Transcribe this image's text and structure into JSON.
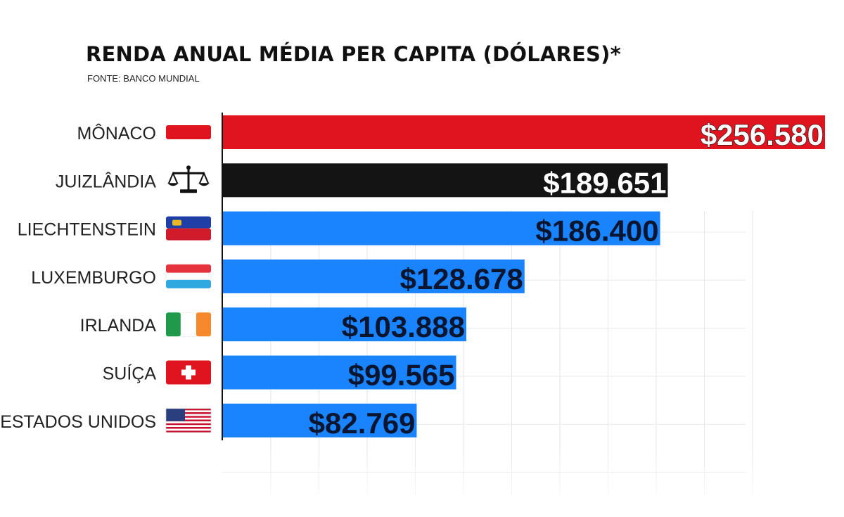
{
  "title": "RENDA ANUAL MÉDIA PER CAPITA (DÓLARES)*",
  "source": "FONTE: BANCO MUNDIAL",
  "chart_data": {
    "type": "bar",
    "orientation": "horizontal",
    "title": "RENDA ANUAL MÉDIA PER CAPITA (DÓLARES)*",
    "subtitle": "FONTE: BANCO MUNDIAL",
    "xlabel": "",
    "ylabel": "",
    "xlim": [
      0,
      256580
    ],
    "grid": true,
    "categories": [
      "MÔNACO",
      "JUIZLÂNDIA",
      "LIECHTENSTEIN",
      "LUXEMBURGO",
      "IRLANDA",
      "SUÍÇA",
      "ESTADOS UNIDOS"
    ],
    "values": [
      256580,
      189651,
      186400,
      128678,
      103888,
      99565,
      82769
    ],
    "data_labels": [
      "$256.580",
      "$189.651",
      "$186.400",
      "$128.678",
      "$103.888",
      "$99.565",
      "$82.769"
    ],
    "icons": [
      "monaco-flag-icon",
      "scales-of-justice-icon",
      "liechtenstein-flag-icon",
      "luxembourg-flag-icon",
      "ireland-flag-icon",
      "switzerland-flag-icon",
      "usa-flag-icon"
    ],
    "bar_colors": [
      "#e0141e",
      "#141414",
      "#1a84ff",
      "#1a84ff",
      "#1a84ff",
      "#1a84ff",
      "#1a84ff"
    ],
    "label_colors": [
      "#ffffff",
      "#ffffff",
      "#0a1530",
      "#0a1530",
      "#0a1530",
      "#0a1530",
      "#0a1530"
    ]
  }
}
